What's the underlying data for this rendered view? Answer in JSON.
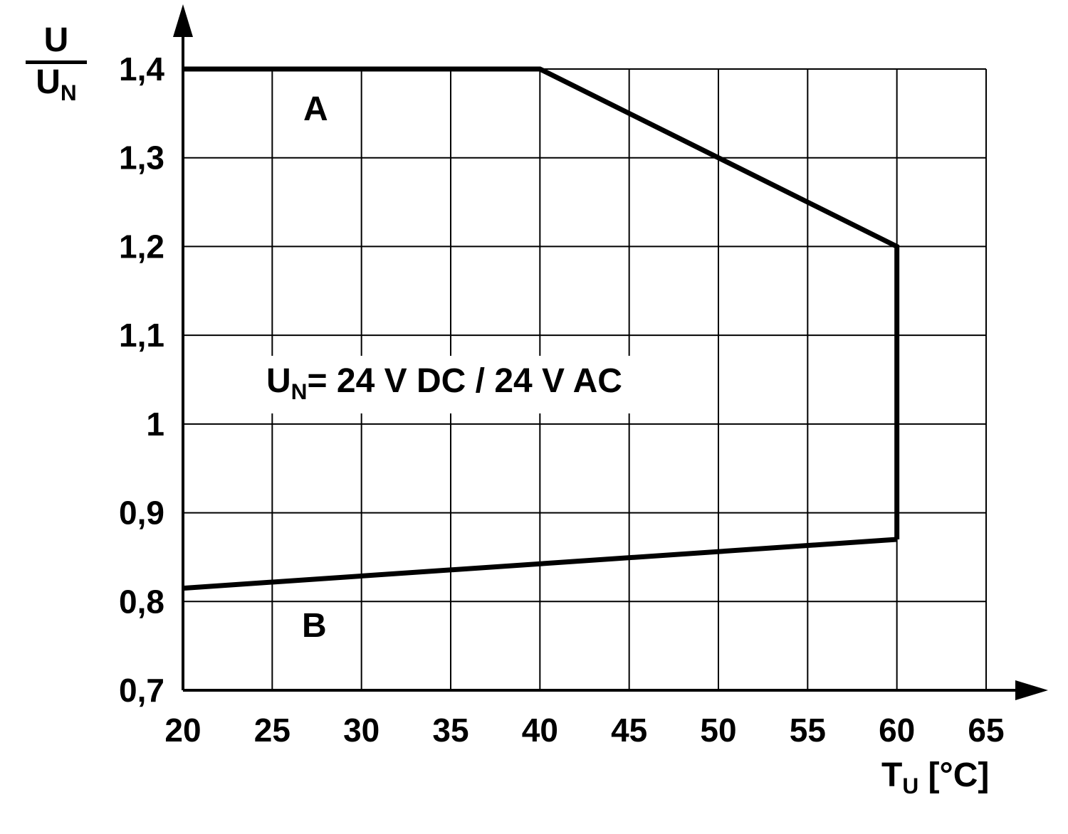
{
  "chart_data": {
    "type": "line",
    "title": "",
    "xlabel": "TU [°C]",
    "ylabel": "U/UN",
    "xlim": [
      20,
      65
    ],
    "ylim": [
      0.7,
      1.4
    ],
    "grid": true,
    "x_ticks": [
      "20",
      "25",
      "30",
      "35",
      "40",
      "45",
      "50",
      "55",
      "60",
      "65"
    ],
    "x_tick_values": [
      20,
      25,
      30,
      35,
      40,
      45,
      50,
      55,
      60,
      65
    ],
    "y_ticks": [
      "1,4",
      "1,3",
      "1,2",
      "1,1",
      "1",
      "0,9",
      "0,8",
      "0,7"
    ],
    "y_tick_values": [
      1.4,
      1.3,
      1.2,
      1.1,
      1.0,
      0.9,
      0.8,
      0.7
    ],
    "series": [
      {
        "name": "A",
        "points": [
          [
            20,
            1.4
          ],
          [
            40,
            1.4
          ],
          [
            60,
            1.2
          ],
          [
            60,
            0.87
          ]
        ]
      },
      {
        "name": "B",
        "points": [
          [
            20,
            0.815
          ],
          [
            60,
            0.87
          ]
        ]
      }
    ],
    "colors": {
      "line": "#000000",
      "grid": "#000000",
      "axis": "#000000",
      "background": "#ffffff"
    }
  },
  "labels": {
    "y_axis": {
      "numerator": "U",
      "denominator_base": "U",
      "denominator_sub": "N"
    },
    "x_axis": {
      "base": "T",
      "sub": "U",
      "rest": " [°C]"
    },
    "annotation": {
      "base": "U",
      "sub": "N",
      "rest": "= 24 V DC / 24 V AC"
    },
    "series_a": "A",
    "series_b": "B"
  }
}
